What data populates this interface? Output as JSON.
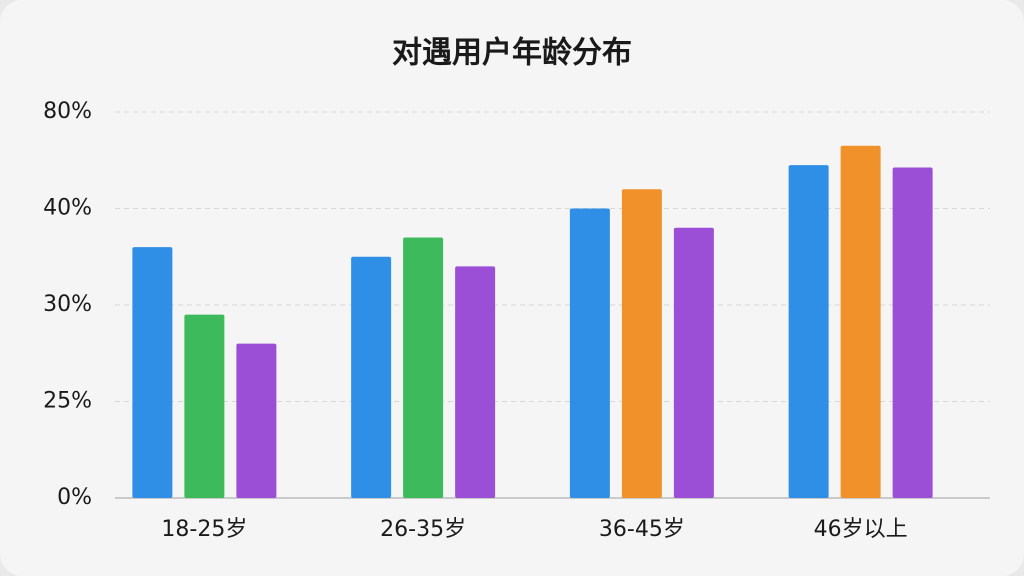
{
  "chart_data": {
    "type": "bar",
    "title": "对遇用户年龄分布",
    "categories": [
      "18-25岁",
      "26-35岁",
      "36-45岁",
      "46岁以上"
    ],
    "series": [
      {
        "colors": [
          "#2f8fe6",
          "#2f8fe6",
          "#2f8fe6",
          "#2f8fe6"
        ],
        "values": [
          36,
          35,
          40,
          58
        ]
      },
      {
        "colors": [
          "#3dbb5c",
          "#3dbb5c",
          "#f0912a",
          "#f0912a"
        ],
        "values": [
          29.5,
          37,
          48,
          66
        ]
      },
      {
        "colors": [
          "#9b4fd6",
          "#9b4fd6",
          "#9b4fd6",
          "#9b4fd6"
        ],
        "values": [
          28,
          34,
          38,
          57
        ]
      }
    ],
    "ylim": [
      0,
      80
    ],
    "yticks": [
      {
        "value": 0,
        "label": "0%"
      },
      {
        "value": 25,
        "label": "25%"
      },
      {
        "value": 30,
        "label": "30%"
      },
      {
        "value": 40,
        "label": "40%"
      },
      {
        "value": 80,
        "label": "80%"
      }
    ],
    "grid": true
  }
}
